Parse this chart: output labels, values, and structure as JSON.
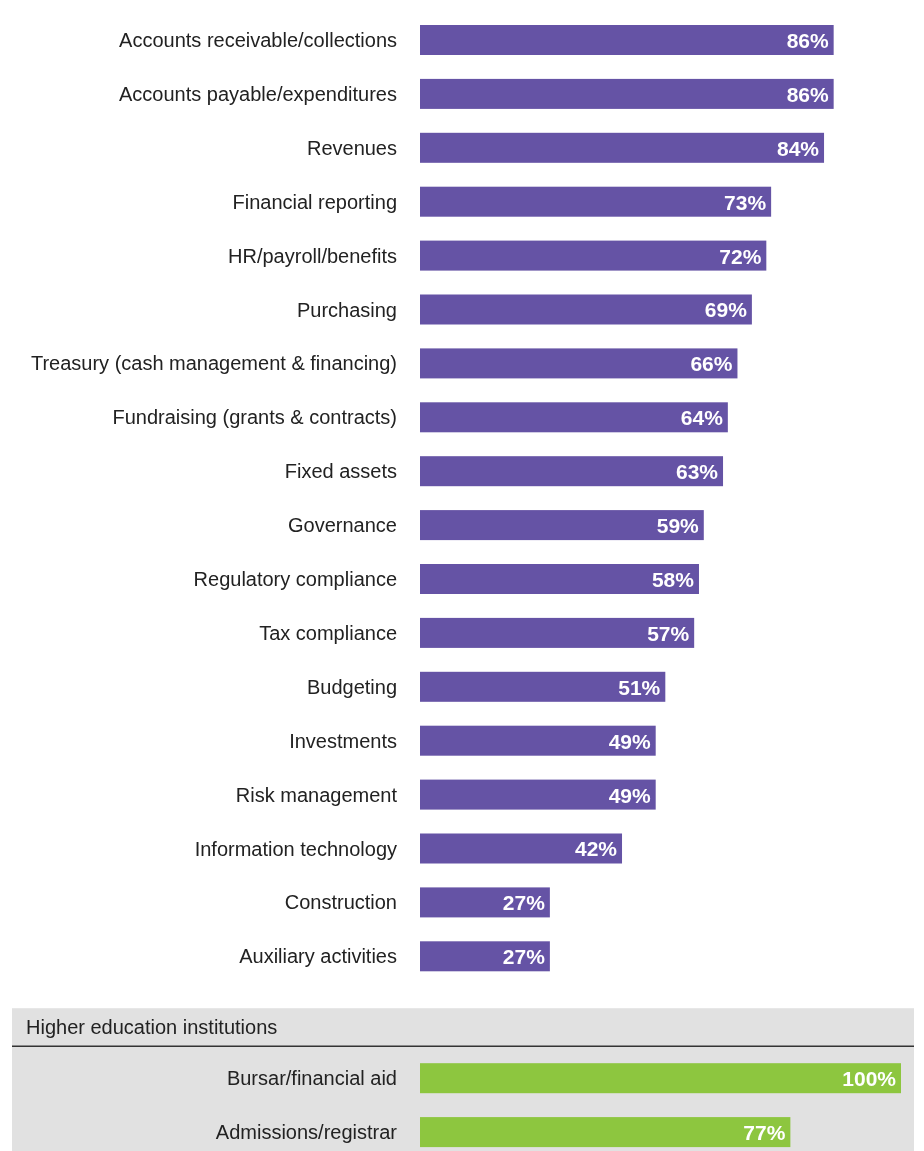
{
  "chart_data": [
    {
      "type": "bar",
      "orientation": "horizontal",
      "categories": [
        "Accounts receivable/collections",
        "Accounts payable/expenditures",
        "Revenues",
        "Financial reporting",
        "HR/payroll/benefits",
        "Purchasing",
        "Treasury (cash management & financing)",
        "Fundraising (grants & contracts)",
        "Fixed assets",
        "Governance",
        "Regulatory compliance",
        "Tax compliance",
        "Budgeting",
        "Investments",
        "Risk management",
        "Information technology",
        "Construction",
        "Auxiliary activities"
      ],
      "values": [
        86,
        86,
        84,
        73,
        72,
        69,
        66,
        64,
        63,
        59,
        58,
        57,
        51,
        49,
        49,
        42,
        27,
        27
      ],
      "color": "#6553a5",
      "data_labels": true,
      "value_labels": [
        "86%",
        "86%",
        "84%",
        "73%",
        "72%",
        "69%",
        "66%",
        "64%",
        "63%",
        "59%",
        "58%",
        "57%",
        "51%",
        "49%",
        "49%",
        "42%",
        "27%",
        "27%"
      ],
      "tick_labels": "y"
    },
    {
      "type": "bar",
      "orientation": "horizontal",
      "title": "Higher education institutions",
      "categories": [
        "Bursar/financial aid",
        "Admissions/registrar"
      ],
      "values": [
        100,
        77
      ],
      "color": "#8dc63f",
      "data_labels": true,
      "value_labels": [
        "100%",
        "77%"
      ],
      "tick_labels": "y"
    }
  ]
}
